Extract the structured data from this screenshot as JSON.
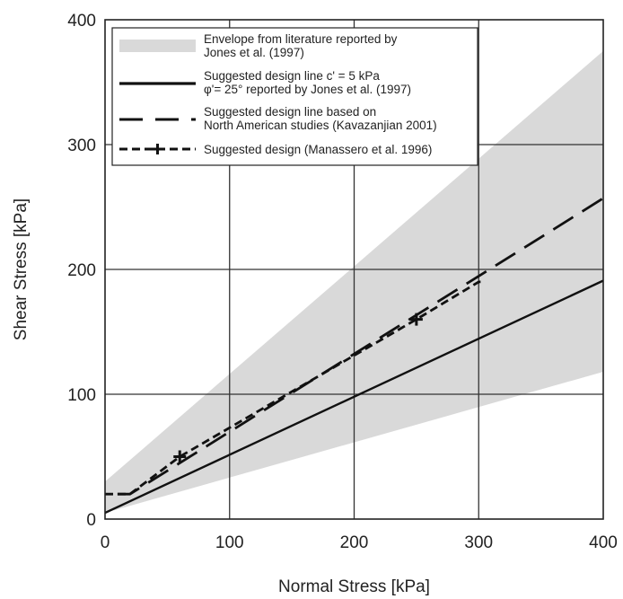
{
  "chart_data": {
    "type": "line",
    "xlabel": "Normal Stress [kPa]",
    "ylabel": "Shear Stress [kPa]",
    "xlim": [
      0,
      400
    ],
    "ylim": [
      0,
      400
    ],
    "x_ticks": [
      "0",
      "100",
      "200",
      "300",
      "400"
    ],
    "y_ticks": [
      "0",
      "100",
      "200",
      "300",
      "400"
    ],
    "grid": true,
    "legend_position": "top-left",
    "envelope": {
      "name_lines": [
        "Envelope from literature reported by",
        "Jones et al. (1997)"
      ],
      "upper": [
        [
          0,
          30
        ],
        [
          400,
          375
        ]
      ],
      "lower": [
        [
          0,
          5
        ],
        [
          400,
          118
        ]
      ],
      "color": "#d9d9d9"
    },
    "series": [
      {
        "name_lines": [
          "Suggested design line c' = 5 kPa",
          "φ'= 25° reported by Jones et al. (1997)"
        ],
        "style": "solid",
        "color": "#111111",
        "points": [
          [
            0,
            5
          ],
          [
            400,
            191
          ]
        ]
      },
      {
        "name_lines": [
          "Suggested design line based on",
          "North American studies (Kavazanjian 2001)"
        ],
        "style": "long-dash",
        "color": "#111111",
        "points": [
          [
            10,
            20
          ],
          [
            20,
            20
          ],
          [
            400,
            257
          ]
        ]
      },
      {
        "name_lines": [
          "Suggested design (Manassero et al. 1996)"
        ],
        "style": "short-dash-cross",
        "color": "#111111",
        "points": [
          [
            0,
            20
          ],
          [
            20,
            20
          ],
          [
            60,
            50
          ],
          [
            250,
            160
          ],
          [
            300,
            190
          ],
          [
            305,
            190
          ]
        ],
        "markers": [
          [
            60,
            50
          ],
          [
            250,
            160
          ]
        ]
      }
    ]
  }
}
